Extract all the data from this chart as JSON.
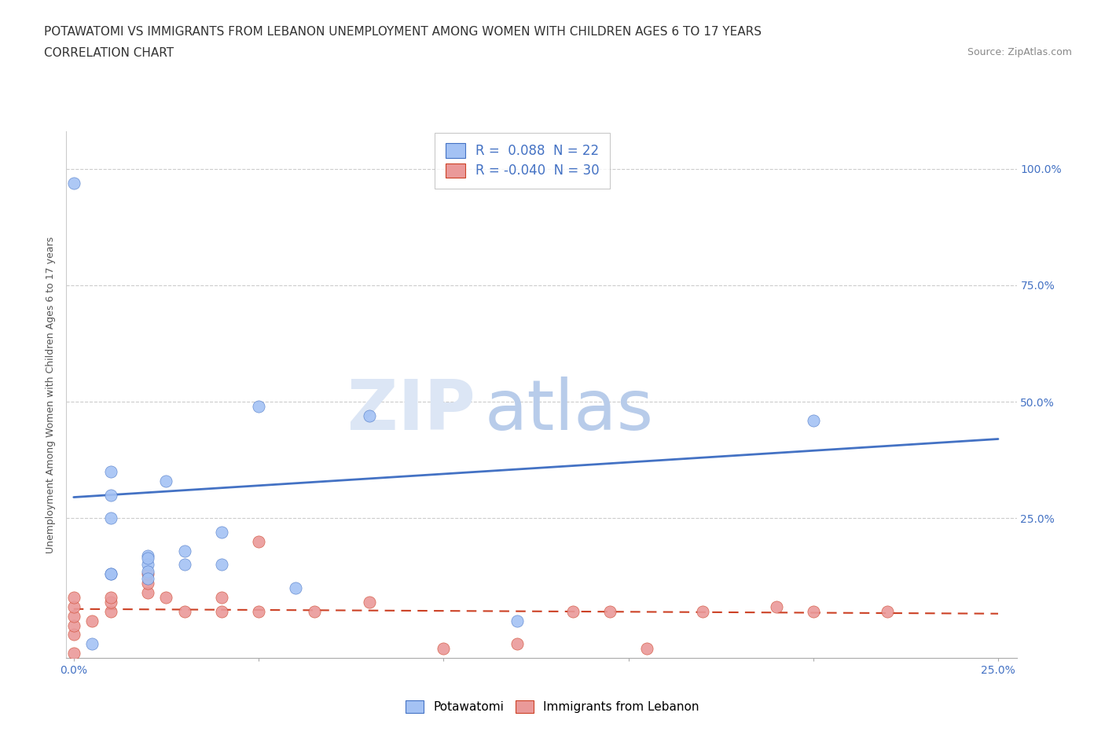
{
  "title_line1": "POTAWATOMI VS IMMIGRANTS FROM LEBANON UNEMPLOYMENT AMONG WOMEN WITH CHILDREN AGES 6 TO 17 YEARS",
  "title_line2": "CORRELATION CHART",
  "source": "Source: ZipAtlas.com",
  "ylabel": "Unemployment Among Women with Children Ages 6 to 17 years",
  "xlim": [
    -0.002,
    0.255
  ],
  "ylim": [
    -0.05,
    1.08
  ],
  "xtick_positions": [
    0.0,
    0.05,
    0.1,
    0.15,
    0.2,
    0.25
  ],
  "xtick_labels": [
    "0.0%",
    "",
    "",
    "",
    "",
    "25.0%"
  ],
  "ytick_positions": [
    0.25,
    0.5,
    0.75,
    1.0
  ],
  "ytick_labels": [
    "25.0%",
    "50.0%",
    "75.0%",
    "100.0%"
  ],
  "legend_r1": "R =  0.088  N = 22",
  "legend_r2": "R = -0.040  N = 30",
  "color_blue": "#a4c2f4",
  "color_pink": "#ea9999",
  "color_blue_line": "#4472c4",
  "color_pink_line": "#cc4125",
  "color_text_blue": "#4472c4",
  "watermark_zip": "ZIP",
  "watermark_atlas": "atlas",
  "grid_color": "#cccccc",
  "background_color": "#ffffff",
  "potawatomi_x": [
    0.0,
    0.01,
    0.01,
    0.01,
    0.01,
    0.01,
    0.02,
    0.02,
    0.02,
    0.02,
    0.02,
    0.025,
    0.03,
    0.03,
    0.04,
    0.04,
    0.05,
    0.06,
    0.08,
    0.12,
    0.2,
    0.005
  ],
  "potawatomi_y": [
    0.97,
    0.35,
    0.3,
    0.25,
    0.13,
    0.13,
    0.17,
    0.15,
    0.135,
    0.12,
    0.165,
    0.33,
    0.18,
    0.15,
    0.15,
    0.22,
    0.49,
    0.1,
    0.47,
    0.03,
    0.46,
    -0.02
  ],
  "lebanon_x": [
    0.0,
    0.0,
    0.0,
    0.0,
    0.0,
    0.005,
    0.01,
    0.01,
    0.01,
    0.02,
    0.02,
    0.02,
    0.025,
    0.03,
    0.04,
    0.04,
    0.05,
    0.05,
    0.065,
    0.08,
    0.1,
    0.12,
    0.135,
    0.145,
    0.155,
    0.17,
    0.19,
    0.2,
    0.22,
    0.0
  ],
  "lebanon_y": [
    0.0,
    0.02,
    0.04,
    0.06,
    0.08,
    0.03,
    0.05,
    0.07,
    0.08,
    0.09,
    0.11,
    0.13,
    0.08,
    0.05,
    0.05,
    0.08,
    0.05,
    0.2,
    0.05,
    0.07,
    -0.03,
    -0.02,
    0.05,
    0.05,
    -0.03,
    0.05,
    0.06,
    0.05,
    0.05,
    -0.04
  ],
  "potawatomi_trend_x": [
    0.0,
    0.25
  ],
  "potawatomi_trend_y": [
    0.295,
    0.42
  ],
  "lebanon_trend_x": [
    0.0,
    0.25
  ],
  "lebanon_trend_y": [
    0.055,
    0.045
  ],
  "title_fontsize": 11,
  "subtitle_fontsize": 11,
  "source_fontsize": 9,
  "axis_label_fontsize": 9,
  "tick_fontsize": 10
}
